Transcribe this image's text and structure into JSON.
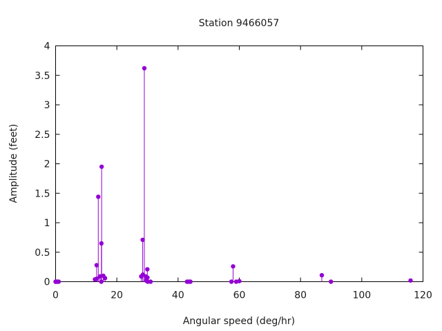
{
  "chart_data": {
    "type": "scatter",
    "style": "impulses-with-points",
    "title": "Station 9466057",
    "xlabel": "Angular speed (deg/hr)",
    "ylabel": "Amplitude (feet)",
    "xlim": [
      0,
      120
    ],
    "ylim": [
      0,
      4
    ],
    "x_ticks": [
      0,
      20,
      40,
      60,
      80,
      100,
      120
    ],
    "y_ticks": [
      0,
      0.5,
      1,
      1.5,
      2,
      2.5,
      3,
      3.5,
      4
    ],
    "grid": false,
    "legend": "none",
    "color": "#9400d3",
    "points": [
      {
        "x": 0.0,
        "y": 0.0
      },
      {
        "x": 0.04,
        "y": 0.0
      },
      {
        "x": 0.08,
        "y": 0.0
      },
      {
        "x": 0.5,
        "y": 0.0
      },
      {
        "x": 1.0,
        "y": 0.0
      },
      {
        "x": 12.85,
        "y": 0.04
      },
      {
        "x": 13.4,
        "y": 0.28
      },
      {
        "x": 13.47,
        "y": 0.05
      },
      {
        "x": 13.94,
        "y": 1.44
      },
      {
        "x": 14.5,
        "y": 0.09
      },
      {
        "x": 14.96,
        "y": 0.65
      },
      {
        "x": 15.04,
        "y": 1.95
      },
      {
        "x": 14.92,
        "y": 0.0
      },
      {
        "x": 15.59,
        "y": 0.1
      },
      {
        "x": 16.14,
        "y": 0.06
      },
      {
        "x": 27.97,
        "y": 0.09
      },
      {
        "x": 28.44,
        "y": 0.71
      },
      {
        "x": 28.51,
        "y": 0.12
      },
      {
        "x": 28.98,
        "y": 3.62
      },
      {
        "x": 29.46,
        "y": 0.09
      },
      {
        "x": 29.53,
        "y": 0.02
      },
      {
        "x": 29.96,
        "y": 0.21
      },
      {
        "x": 30.0,
        "y": 0.07
      },
      {
        "x": 30.08,
        "y": 0.0
      },
      {
        "x": 31.02,
        "y": 0.0
      },
      {
        "x": 42.93,
        "y": 0.0
      },
      {
        "x": 43.48,
        "y": 0.0
      },
      {
        "x": 44.03,
        "y": 0.0
      },
      {
        "x": 57.42,
        "y": 0.0
      },
      {
        "x": 57.97,
        "y": 0.26
      },
      {
        "x": 58.98,
        "y": 0.0
      },
      {
        "x": 60.0,
        "y": 0.01
      },
      {
        "x": 86.95,
        "y": 0.11
      },
      {
        "x": 89.93,
        "y": 0.0
      },
      {
        "x": 115.94,
        "y": 0.02
      }
    ]
  }
}
